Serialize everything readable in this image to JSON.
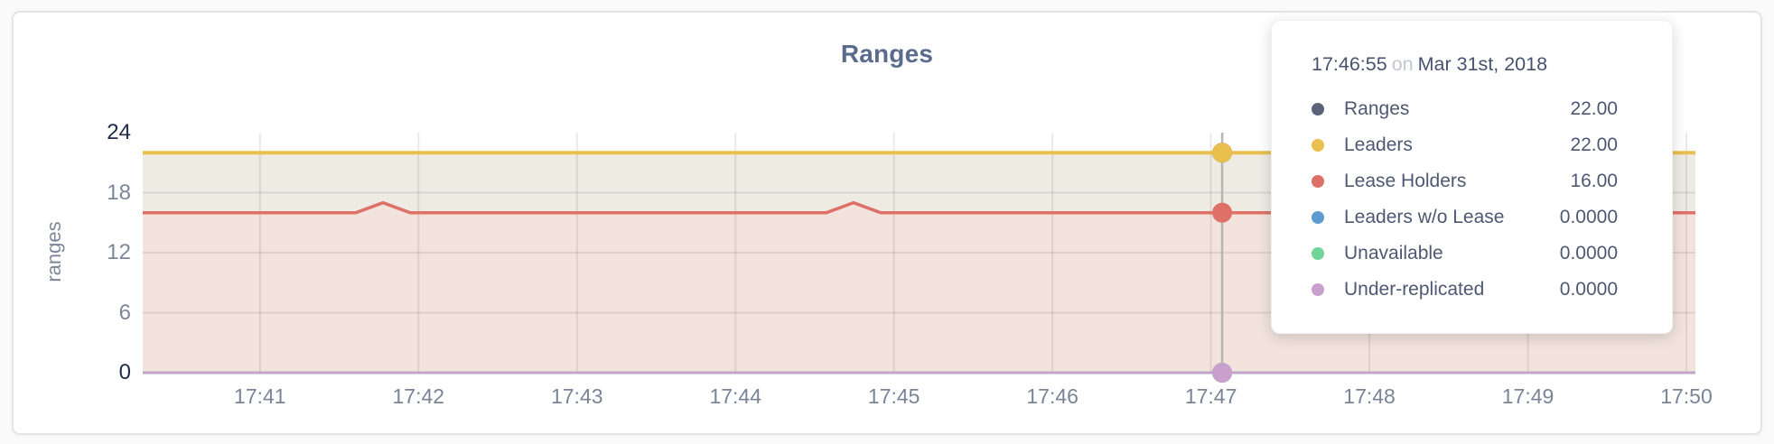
{
  "tooltip": {
    "time": "17:46:55",
    "on_word": "on",
    "date": "Mar 31st, 2018",
    "rows": [
      {
        "series": "ranges",
        "label": "Ranges",
        "value": "22.00"
      },
      {
        "series": "leaders",
        "label": "Leaders",
        "value": "22.00"
      },
      {
        "series": "lease_holders",
        "label": "Lease Holders",
        "value": "16.00"
      },
      {
        "series": "leaders_wo_lease",
        "label": "Leaders w/o Lease",
        "value": "0.0000"
      },
      {
        "series": "unavailable",
        "label": "Unavailable",
        "value": "0.0000"
      },
      {
        "series": "under_replicated",
        "label": "Under-replicated",
        "value": "0.0000"
      }
    ]
  },
  "colors": {
    "ranges": "#5a6378",
    "leaders": "#e9bf4e",
    "lease_holders": "#df7068",
    "leaders_wo_lease": "#5b9bd0",
    "unavailable": "#70d49b",
    "under_replicated": "#c9a0cc",
    "grid": "rgba(0,0,0,0.085)",
    "hover_line": "#b5b5b5",
    "axis_strong": "#1e2a47",
    "axis_muted": "#7d8799",
    "title_text": "#5a6b8c",
    "leaders_fill": "#edebe2",
    "lease_holders_fill": "#f2e3dd"
  },
  "chart_data": {
    "type": "line",
    "title": "Ranges",
    "ylabel": "ranges",
    "ylim": [
      0,
      24
    ],
    "grid": true,
    "legend_position": "tooltip-overlay",
    "x_domain_minutes": [
      40.26,
      50.057
    ],
    "x_ticks": [
      {
        "label": "17:41",
        "m": 41
      },
      {
        "label": "17:42",
        "m": 42
      },
      {
        "label": "17:43",
        "m": 43
      },
      {
        "label": "17:44",
        "m": 44
      },
      {
        "label": "17:45",
        "m": 45
      },
      {
        "label": "17:46",
        "m": 46
      },
      {
        "label": "17:47",
        "m": 47
      },
      {
        "label": "17:48",
        "m": 48
      },
      {
        "label": "17:49",
        "m": 49
      },
      {
        "label": "17:50",
        "m": 50
      }
    ],
    "y_ticks": [
      {
        "label": "0",
        "v": 0,
        "strong": true
      },
      {
        "label": "6",
        "v": 6,
        "strong": false
      },
      {
        "label": "12",
        "v": 12,
        "strong": false
      },
      {
        "label": "18",
        "v": 18,
        "strong": false
      },
      {
        "label": "24",
        "v": 24,
        "strong": true
      }
    ],
    "y_grid": [
      6,
      12,
      18
    ],
    "series": [
      {
        "key": "ranges",
        "name": "Ranges",
        "width": 3.5,
        "points": [
          [
            40.26,
            22
          ],
          [
            50.057,
            22
          ]
        ]
      },
      {
        "key": "leaders",
        "name": "Leaders",
        "width": 4,
        "fill_color": "#edebe2",
        "points": [
          [
            40.26,
            22
          ],
          [
            50.057,
            22
          ]
        ]
      },
      {
        "key": "lease_holders",
        "name": "Lease Holders",
        "width": 3.5,
        "fill_color": "#f2e3dd",
        "points": [
          [
            40.26,
            16
          ],
          [
            41.605,
            16
          ],
          [
            41.776,
            17
          ],
          [
            41.947,
            16
          ],
          [
            44.574,
            16
          ],
          [
            44.745,
            17
          ],
          [
            44.916,
            16
          ],
          [
            50.057,
            16
          ]
        ]
      },
      {
        "key": "leaders_wo_lease",
        "name": "Leaders w/o Lease",
        "width": 2.5,
        "points": [
          [
            40.26,
            0
          ],
          [
            50.057,
            0
          ]
        ]
      },
      {
        "key": "unavailable",
        "name": "Unavailable",
        "width": 2.5,
        "points": [
          [
            40.26,
            0
          ],
          [
            50.057,
            0
          ]
        ]
      },
      {
        "key": "under_replicated",
        "name": "Under-replicated",
        "width": 2.5,
        "points": [
          [
            40.26,
            0
          ],
          [
            50.057,
            0
          ]
        ]
      }
    ],
    "hover": {
      "time": "17:46:55",
      "x_minutes": 47.071,
      "points": [
        {
          "series": "ranges",
          "v": 22
        },
        {
          "series": "leaders",
          "v": 22
        },
        {
          "series": "lease_holders",
          "v": 16
        },
        {
          "series": "leaders_wo_lease",
          "v": 0
        },
        {
          "series": "unavailable",
          "v": 0
        },
        {
          "series": "under_replicated",
          "v": 0
        }
      ]
    }
  }
}
